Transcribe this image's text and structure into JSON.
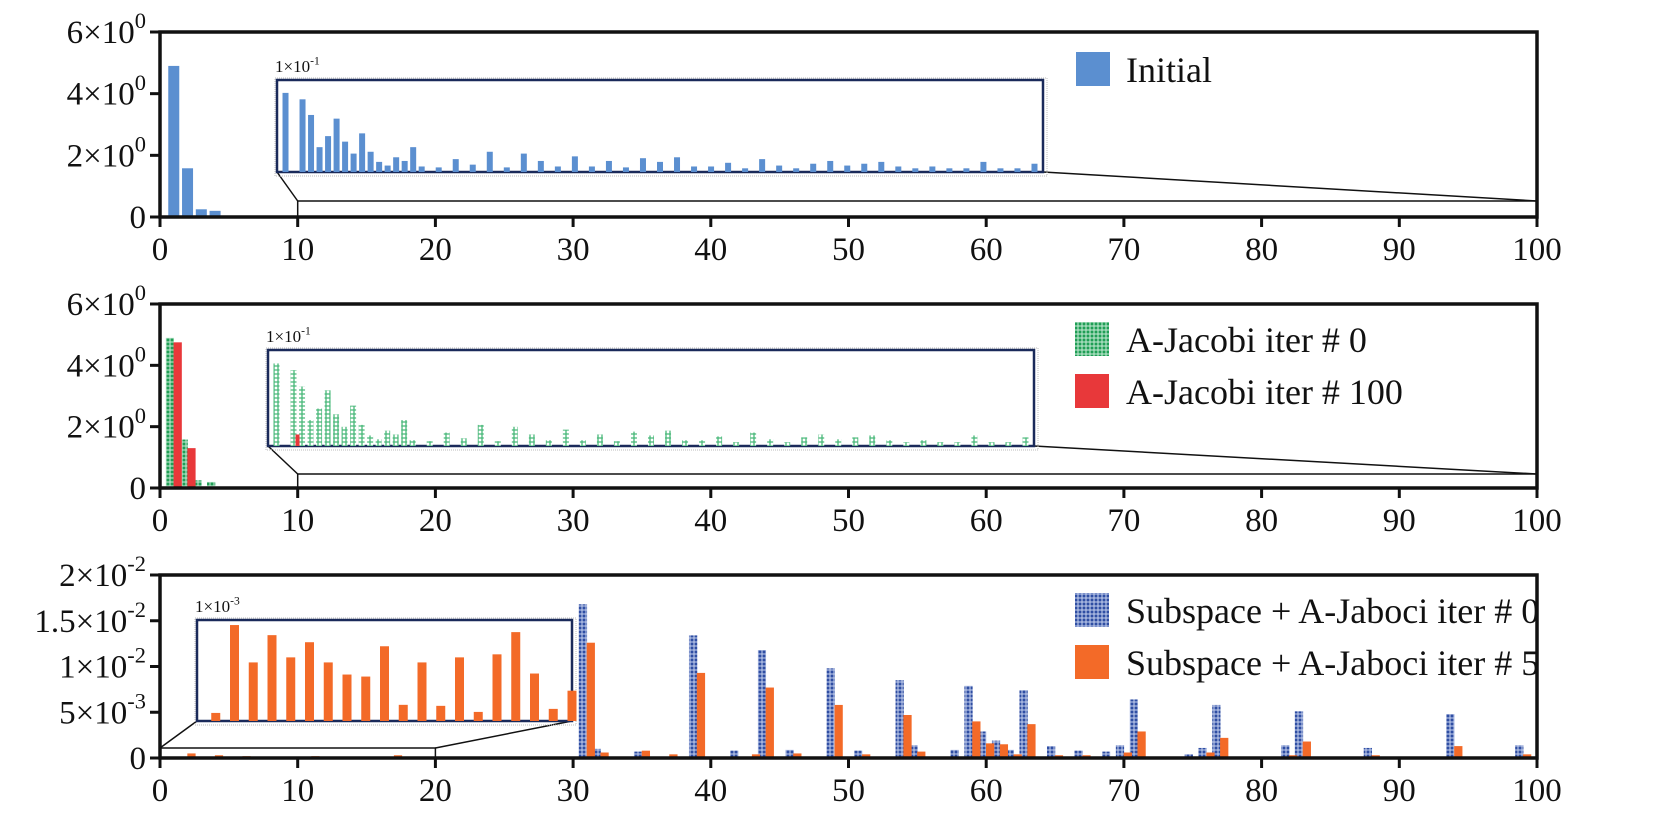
{
  "chart_data": [
    {
      "type": "bar",
      "x_ticks": [
        "0",
        "10",
        "20",
        "30",
        "40",
        "50",
        "60",
        "70",
        "80",
        "90",
        "100"
      ],
      "xlim": [
        0,
        100
      ],
      "y_ticks": [
        "0",
        "2×10",
        "4×10",
        "6×10"
      ],
      "y_tick_exponents": [
        "",
        "0",
        "0",
        "0"
      ],
      "ylim": [
        0,
        6
      ],
      "legend_position": "top-right",
      "series": [
        {
          "name": "Initial",
          "color": "#5b8fd0",
          "pattern": "solid",
          "x": [
            1,
            2,
            3,
            4,
            5,
            6,
            7,
            8,
            9,
            10
          ],
          "values": [
            4.9,
            1.58,
            0.25,
            0.2,
            0.02,
            0.02,
            0.01,
            0.01,
            0.01,
            0.01
          ]
        }
      ],
      "inset": {
        "label": "1×10",
        "label_exponent": "-1",
        "zoom_range": [
          10,
          100
        ],
        "ylim": [
          0,
          0.1
        ],
        "x": [
          11,
          13,
          14,
          15,
          16,
          17,
          18,
          19,
          20,
          21,
          22,
          23,
          24,
          25,
          26,
          27,
          29,
          31,
          33,
          35,
          37,
          39,
          41,
          43,
          45,
          47,
          49,
          51,
          53,
          55,
          57,
          59,
          61,
          63,
          65,
          67,
          69,
          71,
          73,
          75,
          77,
          79,
          81,
          83,
          85,
          87,
          89,
          91,
          93,
          95,
          97,
          99
        ],
        "values": [
          0.086,
          0.079,
          0.062,
          0.027,
          0.039,
          0.058,
          0.033,
          0.02,
          0.042,
          0.022,
          0.011,
          0.007,
          0.016,
          0.012,
          0.027,
          0.006,
          0.005,
          0.014,
          0.008,
          0.022,
          0.005,
          0.02,
          0.012,
          0.006,
          0.017,
          0.006,
          0.012,
          0.005,
          0.015,
          0.011,
          0.016,
          0.006,
          0.006,
          0.01,
          0.004,
          0.014,
          0.007,
          0.004,
          0.009,
          0.012,
          0.007,
          0.009,
          0.011,
          0.006,
          0.004,
          0.006,
          0.004,
          0.004,
          0.011,
          0.004,
          0.004,
          0.009
        ]
      }
    },
    {
      "type": "bar",
      "x_ticks": [
        "0",
        "10",
        "20",
        "30",
        "40",
        "50",
        "60",
        "70",
        "80",
        "90",
        "100"
      ],
      "xlim": [
        0,
        100
      ],
      "y_ticks": [
        "0",
        "2×10",
        "4×10",
        "6×10"
      ],
      "y_tick_exponents": [
        "",
        "0",
        "0",
        "0"
      ],
      "ylim": [
        0,
        6
      ],
      "legend_position": "top-right",
      "series": [
        {
          "name": "A-Jacobi iter # 0",
          "color": "#1f9e55",
          "pattern": "hatched",
          "x": [
            1,
            2,
            3,
            4,
            5,
            6,
            7,
            8,
            9,
            10
          ],
          "values": [
            4.9,
            1.58,
            0.25,
            0.2,
            0.02,
            0.02,
            0.01,
            0.01,
            0.01,
            0.01
          ]
        },
        {
          "name": "A-Jacobi iter # 100",
          "color": "#e8383a",
          "pattern": "solid",
          "x": [
            1,
            2,
            3,
            4,
            5,
            6,
            7,
            8,
            9,
            10
          ],
          "values": [
            4.75,
            1.3,
            0.05,
            0.03,
            0.01,
            0.01,
            0.005,
            0.005,
            0.005,
            0.005
          ]
        }
      ],
      "inset": {
        "label": "1×10",
        "label_exponent": "-1",
        "zoom_range": [
          10,
          100
        ],
        "ylim": [
          0,
          0.1
        ],
        "x": [
          11,
          13,
          14,
          15,
          16,
          17,
          18,
          19,
          20,
          21,
          22,
          23,
          24,
          25,
          26,
          27,
          29,
          31,
          33,
          35,
          37,
          39,
          41,
          43,
          45,
          47,
          49,
          51,
          53,
          55,
          57,
          59,
          61,
          63,
          65,
          67,
          69,
          71,
          73,
          75,
          77,
          79,
          81,
          83,
          85,
          87,
          89,
          91,
          93,
          95,
          97,
          99
        ],
        "values": [
          0.086,
          0.079,
          0.062,
          0.027,
          0.039,
          0.058,
          0.033,
          0.02,
          0.042,
          0.022,
          0.011,
          0.007,
          0.016,
          0.012,
          0.027,
          0.006,
          0.005,
          0.014,
          0.008,
          0.022,
          0.005,
          0.02,
          0.012,
          0.006,
          0.017,
          0.006,
          0.012,
          0.005,
          0.015,
          0.011,
          0.016,
          0.006,
          0.006,
          0.01,
          0.004,
          0.014,
          0.007,
          0.004,
          0.009,
          0.012,
          0.007,
          0.009,
          0.011,
          0.006,
          0.004,
          0.006,
          0.004,
          0.004,
          0.011,
          0.004,
          0.004,
          0.009
        ],
        "x_red": [
          13
        ],
        "values_red": [
          0.012
        ]
      }
    },
    {
      "type": "bar",
      "x_ticks": [
        "0",
        "10",
        "20",
        "30",
        "40",
        "50",
        "60",
        "70",
        "80",
        "90",
        "100"
      ],
      "xlim": [
        0,
        100
      ],
      "y_ticks": [
        "0",
        "5×10",
        "1×10",
        "1.5×10",
        "2×10"
      ],
      "y_tick_exponents": [
        "",
        "-3",
        "-2",
        "-2",
        "-2"
      ],
      "ylim": [
        0,
        0.02
      ],
      "legend_position": "top-right",
      "series": [
        {
          "name": "Subspace + A-Jaboci iter # 0",
          "color": "#2f4ea3",
          "pattern": "hatched",
          "x": [
            31,
            32,
            35,
            39,
            42,
            44,
            46,
            49,
            51,
            54,
            55,
            58,
            59,
            60,
            61,
            62,
            63,
            65,
            67,
            69,
            70,
            71,
            75,
            76,
            77,
            82,
            83,
            88,
            94,
            99
          ],
          "values": [
            0.0168,
            0.001,
            0.0007,
            0.0134,
            0.0008,
            0.0118,
            0.0009,
            0.0098,
            0.0008,
            0.0085,
            0.0014,
            0.0009,
            0.0079,
            0.0029,
            0.0019,
            0.0009,
            0.0074,
            0.0013,
            0.0008,
            0.0007,
            0.0014,
            0.0064,
            0.0004,
            0.0011,
            0.0058,
            0.0014,
            0.0051,
            0.0011,
            0.0048,
            0.0014
          ]
        },
        {
          "name": "Subspace + A-Jaboci iter # 5",
          "color": "#f36a28",
          "pattern": "solid",
          "x": [
            2,
            4,
            6,
            11,
            17,
            31,
            32,
            35,
            37,
            39,
            43,
            44,
            46,
            49,
            51,
            54,
            55,
            59,
            60,
            61,
            62,
            63,
            65,
            67,
            70,
            71,
            76,
            77,
            82,
            83,
            88,
            94,
            99
          ],
          "values": [
            0.0005,
            0.0003,
            0.0002,
            0.0002,
            0.0003,
            0.0126,
            0.0006,
            0.0008,
            0.0004,
            0.0093,
            0.0004,
            0.0077,
            0.0005,
            0.0058,
            0.0004,
            0.0047,
            0.0007,
            0.004,
            0.0016,
            0.0015,
            0.0004,
            0.0037,
            0.0003,
            0.0003,
            0.0006,
            0.0029,
            0.0006,
            0.0022,
            0.0003,
            0.0018,
            0.0003,
            0.0013,
            0.0004
          ]
        }
      ],
      "inset": {
        "label": "1×10",
        "label_exponent": "-3",
        "zoom_range": [
          0,
          20
        ],
        "ylim": [
          0,
          0.001
        ],
        "x": [
          1,
          2,
          3,
          4,
          5,
          6,
          7,
          8,
          9,
          10,
          11,
          12,
          13,
          14,
          15,
          16,
          17,
          18,
          19,
          20
        ],
        "values": [
          8e-05,
          0.00095,
          0.00058,
          0.00085,
          0.00063,
          0.00078,
          0.00058,
          0.00046,
          0.00044,
          0.00074,
          0.00016,
          0.00058,
          0.00015,
          0.00063,
          9e-05,
          0.00066,
          0.00088,
          0.00047,
          0.00012,
          0.0003
        ]
      }
    }
  ]
}
